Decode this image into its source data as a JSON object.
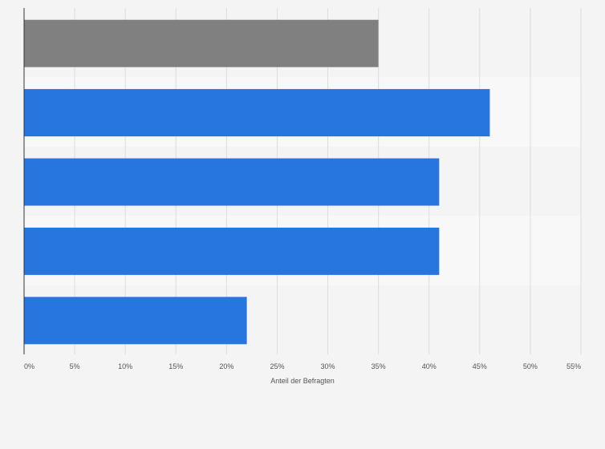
{
  "chart_data": {
    "type": "bar",
    "orientation": "horizontal",
    "categories": [
      "",
      "",
      "",
      "",
      ""
    ],
    "values": [
      35,
      46,
      41,
      41,
      22
    ],
    "bar_colors": [
      "#808080",
      "#2775df",
      "#2775df",
      "#2775df",
      "#2775df"
    ],
    "xlabel": "Anteil der Befragten",
    "ylabel": "",
    "xlim": [
      0,
      55
    ],
    "x_ticks": [
      0,
      5,
      10,
      15,
      20,
      25,
      30,
      35,
      40,
      45,
      50,
      55
    ],
    "x_tick_labels": [
      "0%",
      "5%",
      "10%",
      "15%",
      "20%",
      "25%",
      "30%",
      "35%",
      "40%",
      "45%",
      "50%",
      "55%"
    ],
    "grid": true,
    "background": "#f4f4f4",
    "band_color": "#f8f8f8",
    "grid_color": "#dddddd",
    "axis_color": "#333333"
  }
}
